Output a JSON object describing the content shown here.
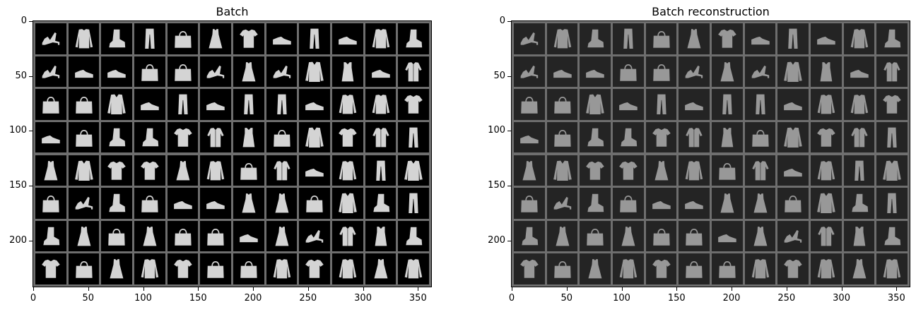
{
  "figures": [
    {
      "id": "batch",
      "title": "Batch",
      "image_description": "grid of 8x12 grayscale Fashion-MNIST items",
      "rows": 8,
      "cols": 12,
      "x_ticks": [
        "0",
        "50",
        "100",
        "150",
        "200",
        "250",
        "300",
        "350"
      ],
      "y_ticks": [
        "0",
        "50",
        "100",
        "150",
        "200"
      ],
      "variant": "original"
    },
    {
      "id": "recon",
      "title": "Batch reconstruction",
      "image_description": "grid of 8x12 blurred reconstructions of the same items",
      "rows": 8,
      "cols": 12,
      "x_ticks": [
        "0",
        "50",
        "100",
        "150",
        "200",
        "250",
        "300",
        "350"
      ],
      "y_ticks": [
        "0",
        "50",
        "100",
        "150",
        "200"
      ],
      "variant": "reconstruction"
    }
  ],
  "items": [
    [
      "sandal",
      "sweater",
      "boot",
      "trouser",
      "bag",
      "dress",
      "tshirt",
      "sneaker",
      "trouser",
      "sneaker",
      "sweater",
      "boot"
    ],
    [
      "sandal",
      "sneaker",
      "sneaker",
      "bag",
      "bag",
      "sandal",
      "dress",
      "sandal",
      "coat",
      "top",
      "sneaker",
      "shirt"
    ],
    [
      "bag",
      "bag",
      "coat",
      "sneaker",
      "trouser",
      "sneaker",
      "trouser",
      "trouser",
      "sneaker",
      "sweater",
      "sweater",
      "tshirt"
    ],
    [
      "sneaker",
      "bag",
      "boot",
      "boot",
      "tshirt",
      "shirt",
      "top",
      "bag",
      "coat",
      "tshirt",
      "shirt",
      "trouser"
    ],
    [
      "dress",
      "coat",
      "tshirt",
      "tshirt",
      "dress",
      "sweater",
      "bag",
      "shirt",
      "sneaker",
      "sweater",
      "trouser",
      "coat"
    ],
    [
      "bag",
      "sandal",
      "boot",
      "bag",
      "sneaker",
      "sneaker",
      "dress",
      "dress",
      "bag",
      "coat",
      "boot",
      "trouser"
    ],
    [
      "boot",
      "dress",
      "bag",
      "dress",
      "bag",
      "bag",
      "sneaker",
      "dress",
      "sandal",
      "shirt",
      "top",
      "boot"
    ],
    [
      "tshirt",
      "bag",
      "dress",
      "sweater",
      "tshirt",
      "bag",
      "bag",
      "sweater",
      "tshirt",
      "sweater",
      "dress",
      "sweater"
    ]
  ]
}
